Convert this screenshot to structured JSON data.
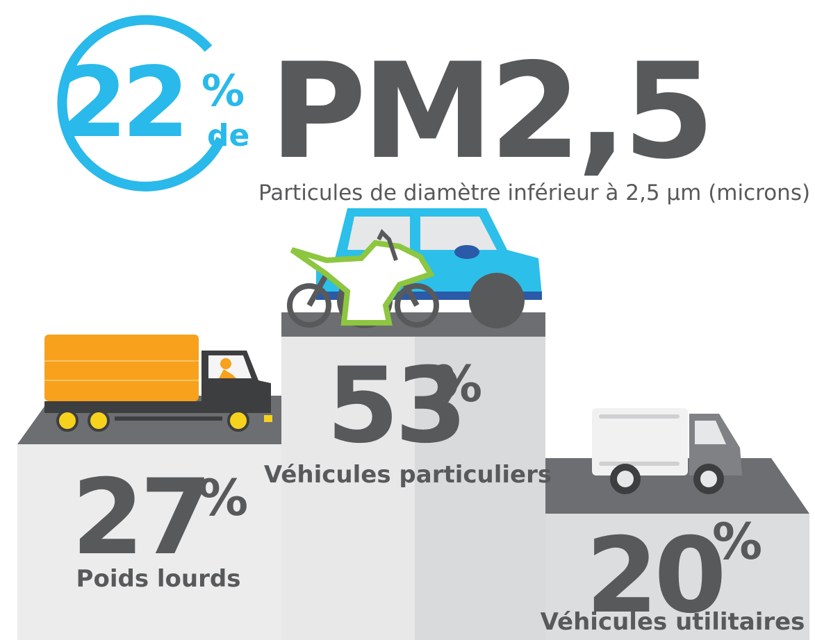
{
  "header": {
    "share": "22",
    "percent": "%",
    "of": "de",
    "pollutant": "PM2,5",
    "subtitle": "Particules de diamètre inférieur à 2,5 µm (microns)"
  },
  "podium": [
    {
      "value": "53",
      "unit": "%",
      "label": "Véhicules particuliers"
    },
    {
      "value": "27",
      "unit": "%",
      "label": "Poids lourds"
    },
    {
      "value": "20",
      "unit": "%",
      "label": "Véhicules utilitaires"
    }
  ]
}
